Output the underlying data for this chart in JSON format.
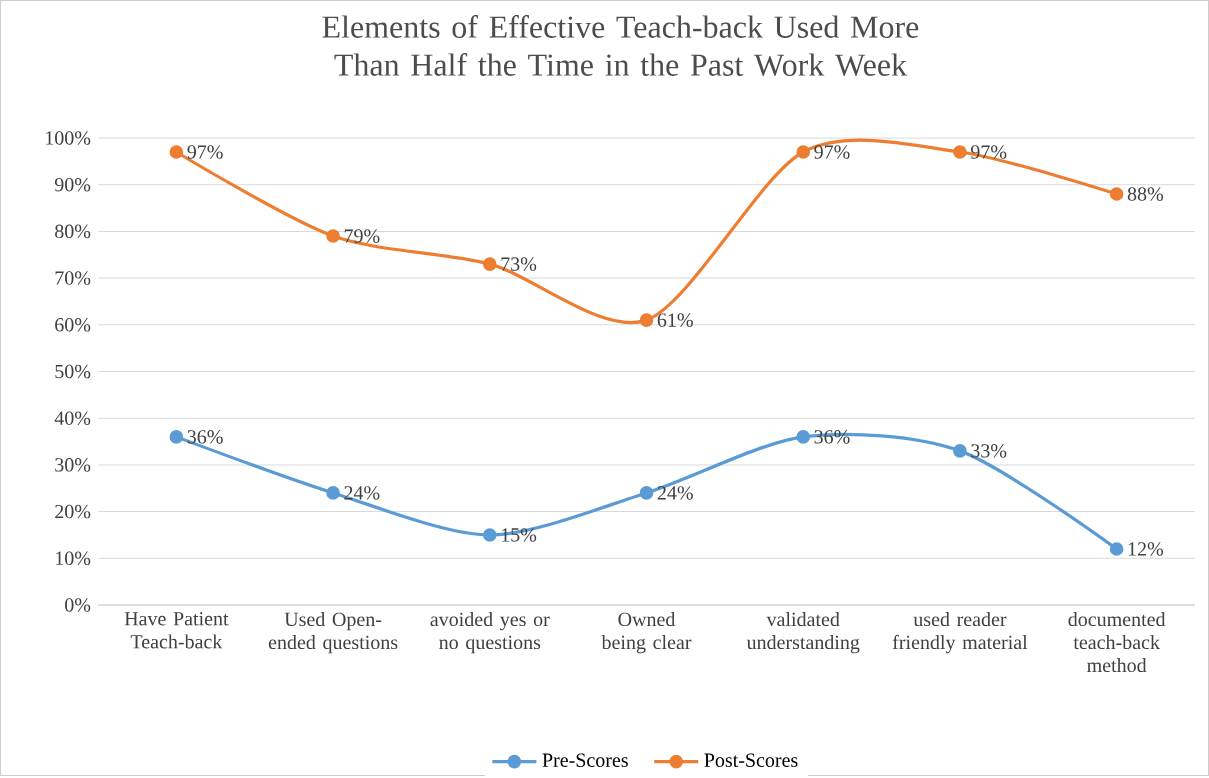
{
  "chart_data": {
    "type": "line",
    "title": "Elements of Effective Teach-back Used More Than Half the Time in the Past Work Week",
    "categories": [
      "Have Patient Teach-back",
      "Used Open-ended questions",
      "avoided yes or no questions",
      "Owned being clear",
      "validated understanding",
      "used reader friendly material",
      "documented teach-back method"
    ],
    "series": [
      {
        "name": "Pre-Scores",
        "color": "#5b9bd5",
        "values": [
          36,
          24,
          15,
          24,
          36,
          33,
          12
        ],
        "value_labels": [
          "36%",
          "24%",
          "15%",
          "24%",
          "36%",
          "33%",
          "12%"
        ]
      },
      {
        "name": "Post-Scores",
        "color": "#ed7d31",
        "values": [
          97,
          79,
          73,
          61,
          97,
          97,
          88
        ],
        "value_labels": [
          "97%",
          "79%",
          "73%",
          "61%",
          "97%",
          "97%",
          "88%"
        ]
      }
    ],
    "ylim": [
      0,
      100
    ],
    "yticks": [
      {
        "value": 0,
        "label": "0%"
      },
      {
        "value": 10,
        "label": "10%"
      },
      {
        "value": 20,
        "label": "20%"
      },
      {
        "value": 30,
        "label": "30%"
      },
      {
        "value": 40,
        "label": "40%"
      },
      {
        "value": 50,
        "label": "50%"
      },
      {
        "value": 60,
        "label": "60%"
      },
      {
        "value": 70,
        "label": "70%"
      },
      {
        "value": 80,
        "label": "80%"
      },
      {
        "value": 90,
        "label": "90%"
      },
      {
        "value": 100,
        "label": "100%"
      }
    ],
    "grid": "y",
    "legend": "bottom",
    "marker": "circle",
    "line_style": "solid"
  }
}
